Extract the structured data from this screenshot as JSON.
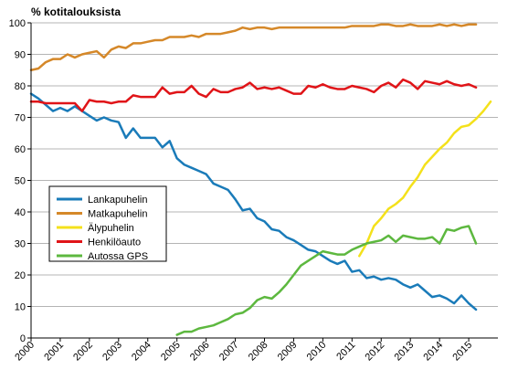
{
  "chart_data": {
    "type": "line",
    "ylabel": "% kotitalouksista",
    "ylim": [
      0,
      100
    ],
    "yticks": [
      0,
      10,
      20,
      30,
      40,
      50,
      60,
      70,
      80,
      90,
      100
    ],
    "xlim": [
      2000,
      2016
    ],
    "xticks": [
      "2000",
      "2001",
      "2002",
      "2003",
      "2004",
      "2005",
      "2006",
      "2007",
      "2008",
      "2009",
      "2010",
      "2011",
      "2012",
      "2013",
      "2014",
      "2015"
    ],
    "grid": "horizontal",
    "legend_position": "left",
    "series": [
      {
        "name": "Lankapuhelin",
        "color": "#1a7bb9",
        "start": 2000,
        "step": 0.25,
        "values": [
          77.5,
          76,
          74,
          72,
          73,
          72,
          73.5,
          72,
          70.5,
          69,
          70,
          69,
          68.5,
          63.5,
          66.5,
          63.5,
          63.5,
          63.5,
          60.5,
          62.5,
          57,
          55,
          54,
          53,
          52,
          49,
          48,
          47,
          44,
          40.5,
          41,
          38,
          37,
          34.5,
          34,
          32,
          31,
          29.5,
          28,
          27.5,
          26,
          24.5,
          23.5,
          24.5,
          21,
          21.5,
          19,
          19.5,
          18.5,
          19,
          18.5,
          17,
          16,
          17,
          15,
          13,
          13.5,
          12.5,
          11,
          13.5,
          11,
          9
        ]
      },
      {
        "name": "Matkapuhelin",
        "color": "#d58829",
        "start": 2000,
        "step": 0.25,
        "values": [
          85,
          85.5,
          87.5,
          88.5,
          88.5,
          90,
          89,
          90,
          90.5,
          91,
          89,
          91.5,
          92.5,
          92,
          93.5,
          93.5,
          94,
          94.5,
          94.5,
          95.5,
          95.5,
          95.5,
          96,
          95.5,
          96.5,
          96.5,
          96.5,
          97,
          97.5,
          98.5,
          98,
          98.5,
          98.5,
          98,
          98.5,
          98.5,
          98.5,
          98.5,
          98.5,
          98.5,
          98.5,
          98.5,
          98.5,
          98.5,
          99,
          99,
          99,
          99,
          99.5,
          99.5,
          99,
          99,
          99.5,
          99,
          99,
          99,
          99.5,
          99,
          99.5,
          99,
          99.5,
          99.5
        ]
      },
      {
        "name": "Älypuhelin",
        "color": "#f4e11b",
        "start": 2011.25,
        "step": 0.25,
        "values": [
          26,
          30,
          35.5,
          38,
          41,
          42.5,
          44.5,
          48,
          51,
          55,
          57.5,
          60,
          62,
          65,
          67,
          67.5,
          69.5,
          72,
          75
        ]
      },
      {
        "name": "Henkilöauto",
        "color": "#e01418",
        "start": 2000,
        "step": 0.25,
        "values": [
          75,
          75,
          74.5,
          74.5,
          74.5,
          74.5,
          74.5,
          72,
          75.5,
          75,
          75,
          74.5,
          75,
          75,
          77,
          76.5,
          76.5,
          76.5,
          79.5,
          77.5,
          78,
          78,
          80,
          77.5,
          76.5,
          79,
          78,
          78,
          79,
          79.5,
          81,
          79,
          79.5,
          79,
          79.5,
          78.5,
          77.5,
          77.5,
          80,
          79.5,
          80.5,
          79.5,
          79,
          79,
          80,
          79.5,
          79,
          78,
          80,
          81,
          79.5,
          82,
          81,
          79,
          81.5,
          81,
          80.5,
          81.5,
          80.5,
          80,
          80.5,
          79.5
        ]
      },
      {
        "name": "Autossa GPS",
        "color": "#5db83f",
        "start": 2005,
        "step": 0.25,
        "values": [
          1,
          2,
          2,
          3,
          3.5,
          4,
          5,
          6,
          7.5,
          8,
          9.5,
          12,
          13,
          12.5,
          14.5,
          17,
          20,
          23,
          24.5,
          26,
          27.5,
          27,
          26.5,
          26.5,
          28,
          29,
          30,
          30.5,
          31,
          32.5,
          30.5,
          32.5,
          32,
          31.5,
          31.5,
          32,
          30,
          34.5,
          34,
          35,
          35.5,
          30
        ]
      }
    ]
  }
}
